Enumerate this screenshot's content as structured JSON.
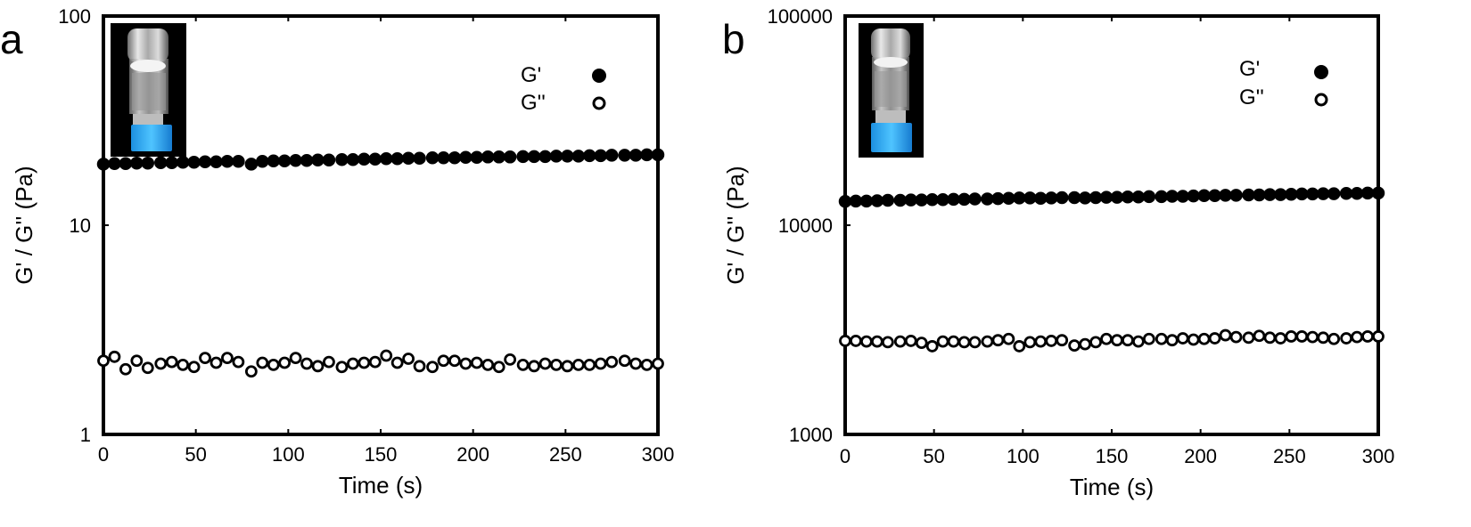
{
  "chart_data": [
    {
      "panel": "a",
      "type": "scatter",
      "xlabel": "Time (s)",
      "ylabel": "G' / G'' (Pa)",
      "xlim": [
        0,
        300
      ],
      "ylim": [
        1,
        100
      ],
      "yscale": "log",
      "xticks": [
        "0",
        "50",
        "100",
        "150",
        "200",
        "250",
        "300"
      ],
      "yticks": [
        "1",
        "10",
        "100"
      ],
      "legend_position": "top-right",
      "inset_image": "inverted-vial-photo",
      "series": [
        {
          "name": "G'",
          "marker": "filled-circle",
          "x": [
            0,
            6,
            12,
            18,
            24,
            31,
            37,
            43,
            49,
            55,
            61,
            67,
            73,
            80,
            86,
            92,
            98,
            104,
            110,
            116,
            122,
            129,
            135,
            141,
            147,
            153,
            159,
            165,
            171,
            178,
            184,
            190,
            196,
            202,
            208,
            214,
            220,
            227,
            233,
            239,
            245,
            251,
            257,
            263,
            269,
            275,
            282,
            288,
            294,
            300
          ],
          "values": [
            19.6,
            19.7,
            19.7,
            19.8,
            19.8,
            19.9,
            19.9,
            20.0,
            20.0,
            20.1,
            20.1,
            20.2,
            20.2,
            19.6,
            20.2,
            20.3,
            20.3,
            20.4,
            20.4,
            20.5,
            20.5,
            20.6,
            20.6,
            20.7,
            20.7,
            20.8,
            20.8,
            20.9,
            20.9,
            21.0,
            21.0,
            21.0,
            21.1,
            21.1,
            21.2,
            21.2,
            21.2,
            21.3,
            21.3,
            21.3,
            21.4,
            21.4,
            21.4,
            21.5,
            21.5,
            21.6,
            21.6,
            21.6,
            21.7,
            21.7
          ]
        },
        {
          "name": "G''",
          "marker": "open-circle",
          "x": [
            0,
            6,
            12,
            18,
            24,
            31,
            37,
            43,
            49,
            55,
            61,
            67,
            73,
            80,
            86,
            92,
            98,
            104,
            110,
            116,
            122,
            129,
            135,
            141,
            147,
            153,
            159,
            165,
            171,
            178,
            184,
            190,
            196,
            202,
            208,
            214,
            220,
            227,
            233,
            239,
            245,
            251,
            257,
            263,
            269,
            275,
            282,
            288,
            294,
            300
          ],
          "values": [
            2.25,
            2.35,
            2.05,
            2.25,
            2.08,
            2.18,
            2.22,
            2.15,
            2.1,
            2.32,
            2.2,
            2.32,
            2.22,
            2.0,
            2.2,
            2.15,
            2.2,
            2.32,
            2.18,
            2.12,
            2.22,
            2.1,
            2.18,
            2.2,
            2.22,
            2.38,
            2.2,
            2.3,
            2.12,
            2.1,
            2.25,
            2.25,
            2.18,
            2.2,
            2.15,
            2.1,
            2.28,
            2.15,
            2.12,
            2.18,
            2.15,
            2.12,
            2.15,
            2.15,
            2.18,
            2.22,
            2.25,
            2.18,
            2.15,
            2.18
          ]
        }
      ]
    },
    {
      "panel": "b",
      "type": "scatter",
      "xlabel": "Time (s)",
      "ylabel": "G' / G'' (Pa)",
      "xlim": [
        0,
        300
      ],
      "ylim": [
        1000,
        100000
      ],
      "yscale": "log",
      "xticks": [
        "0",
        "50",
        "100",
        "150",
        "200",
        "250",
        "300"
      ],
      "yticks": [
        "1000",
        "10000",
        "100000"
      ],
      "legend_position": "top-right",
      "inset_image": "inverted-vial-photo",
      "series": [
        {
          "name": "G'",
          "marker": "filled-circle",
          "x": [
            0,
            6,
            12,
            18,
            24,
            31,
            37,
            43,
            49,
            55,
            61,
            67,
            73,
            80,
            86,
            92,
            98,
            104,
            110,
            116,
            122,
            129,
            135,
            141,
            147,
            153,
            159,
            165,
            171,
            178,
            184,
            190,
            196,
            202,
            208,
            214,
            220,
            227,
            233,
            239,
            245,
            251,
            257,
            263,
            269,
            275,
            282,
            288,
            294,
            300
          ],
          "values": [
            13000,
            13050,
            13050,
            13100,
            13150,
            13150,
            13200,
            13200,
            13250,
            13250,
            13300,
            13300,
            13350,
            13350,
            13400,
            13450,
            13500,
            13500,
            13450,
            13500,
            13550,
            13550,
            13500,
            13550,
            13600,
            13600,
            13650,
            13650,
            13700,
            13700,
            13750,
            13750,
            13800,
            13850,
            13850,
            13900,
            13900,
            13950,
            13950,
            14000,
            14000,
            14050,
            14100,
            14100,
            14150,
            14150,
            14200,
            14200,
            14250,
            14250
          ]
        },
        {
          "name": "G''",
          "marker": "open-circle",
          "x": [
            0,
            6,
            12,
            18,
            24,
            31,
            37,
            43,
            49,
            55,
            61,
            67,
            73,
            80,
            86,
            92,
            98,
            104,
            110,
            116,
            122,
            129,
            135,
            141,
            147,
            153,
            159,
            165,
            171,
            178,
            184,
            190,
            196,
            202,
            208,
            214,
            220,
            227,
            233,
            239,
            245,
            251,
            257,
            263,
            269,
            275,
            282,
            288,
            294,
            300
          ],
          "values": [
            2800,
            2800,
            2780,
            2780,
            2760,
            2780,
            2800,
            2740,
            2640,
            2780,
            2780,
            2760,
            2760,
            2780,
            2820,
            2860,
            2640,
            2760,
            2780,
            2800,
            2820,
            2660,
            2700,
            2760,
            2860,
            2820,
            2820,
            2780,
            2860,
            2860,
            2820,
            2880,
            2840,
            2860,
            2880,
            2980,
            2920,
            2900,
            2960,
            2900,
            2880,
            2940,
            2940,
            2920,
            2900,
            2860,
            2880,
            2920,
            2940,
            2940
          ]
        }
      ]
    }
  ],
  "panels": [
    {
      "letter": "a",
      "legend": [
        "G'",
        "G''"
      ],
      "xlabel": "Time (s)",
      "ylabel": "G' / G'' (Pa)",
      "xticks": [
        "0",
        "50",
        "100",
        "150",
        "200",
        "250",
        "300"
      ],
      "yticks": [
        "1",
        "10",
        "100"
      ]
    },
    {
      "letter": "b",
      "legend": [
        "G'",
        "G''"
      ],
      "xlabel": "Time (s)",
      "ylabel": "G' / G'' (Pa)",
      "xticks": [
        "0",
        "50",
        "100",
        "150",
        "200",
        "250",
        "300"
      ],
      "yticks": [
        "1000",
        "10000",
        "100000"
      ]
    }
  ]
}
